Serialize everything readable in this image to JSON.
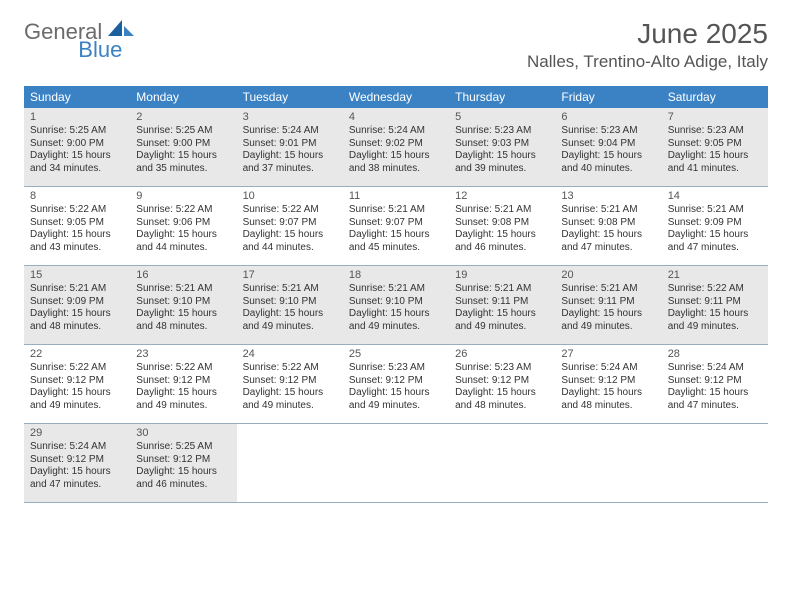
{
  "logo": {
    "word1": "General",
    "word2": "Blue"
  },
  "title": "June 2025",
  "location": "Nalles, Trentino-Alto Adige, Italy",
  "colors": {
    "header_bg": "#3b82c4",
    "header_text": "#ffffff",
    "shaded_bg": "#e8e8e8",
    "rule": "#9aaebf",
    "body_text": "#333333",
    "muted_text": "#555555"
  },
  "day_headers": [
    "Sunday",
    "Monday",
    "Tuesday",
    "Wednesday",
    "Thursday",
    "Friday",
    "Saturday"
  ],
  "weeks": [
    {
      "shaded": true,
      "days": [
        {
          "n": "1",
          "sr": "5:25 AM",
          "ss": "9:00 PM",
          "dl": "15 hours and 34 minutes."
        },
        {
          "n": "2",
          "sr": "5:25 AM",
          "ss": "9:00 PM",
          "dl": "15 hours and 35 minutes."
        },
        {
          "n": "3",
          "sr": "5:24 AM",
          "ss": "9:01 PM",
          "dl": "15 hours and 37 minutes."
        },
        {
          "n": "4",
          "sr": "5:24 AM",
          "ss": "9:02 PM",
          "dl": "15 hours and 38 minutes."
        },
        {
          "n": "5",
          "sr": "5:23 AM",
          "ss": "9:03 PM",
          "dl": "15 hours and 39 minutes."
        },
        {
          "n": "6",
          "sr": "5:23 AM",
          "ss": "9:04 PM",
          "dl": "15 hours and 40 minutes."
        },
        {
          "n": "7",
          "sr": "5:23 AM",
          "ss": "9:05 PM",
          "dl": "15 hours and 41 minutes."
        }
      ]
    },
    {
      "shaded": false,
      "days": [
        {
          "n": "8",
          "sr": "5:22 AM",
          "ss": "9:05 PM",
          "dl": "15 hours and 43 minutes."
        },
        {
          "n": "9",
          "sr": "5:22 AM",
          "ss": "9:06 PM",
          "dl": "15 hours and 44 minutes."
        },
        {
          "n": "10",
          "sr": "5:22 AM",
          "ss": "9:07 PM",
          "dl": "15 hours and 44 minutes."
        },
        {
          "n": "11",
          "sr": "5:21 AM",
          "ss": "9:07 PM",
          "dl": "15 hours and 45 minutes."
        },
        {
          "n": "12",
          "sr": "5:21 AM",
          "ss": "9:08 PM",
          "dl": "15 hours and 46 minutes."
        },
        {
          "n": "13",
          "sr": "5:21 AM",
          "ss": "9:08 PM",
          "dl": "15 hours and 47 minutes."
        },
        {
          "n": "14",
          "sr": "5:21 AM",
          "ss": "9:09 PM",
          "dl": "15 hours and 47 minutes."
        }
      ]
    },
    {
      "shaded": true,
      "days": [
        {
          "n": "15",
          "sr": "5:21 AM",
          "ss": "9:09 PM",
          "dl": "15 hours and 48 minutes."
        },
        {
          "n": "16",
          "sr": "5:21 AM",
          "ss": "9:10 PM",
          "dl": "15 hours and 48 minutes."
        },
        {
          "n": "17",
          "sr": "5:21 AM",
          "ss": "9:10 PM",
          "dl": "15 hours and 49 minutes."
        },
        {
          "n": "18",
          "sr": "5:21 AM",
          "ss": "9:10 PM",
          "dl": "15 hours and 49 minutes."
        },
        {
          "n": "19",
          "sr": "5:21 AM",
          "ss": "9:11 PM",
          "dl": "15 hours and 49 minutes."
        },
        {
          "n": "20",
          "sr": "5:21 AM",
          "ss": "9:11 PM",
          "dl": "15 hours and 49 minutes."
        },
        {
          "n": "21",
          "sr": "5:22 AM",
          "ss": "9:11 PM",
          "dl": "15 hours and 49 minutes."
        }
      ]
    },
    {
      "shaded": false,
      "days": [
        {
          "n": "22",
          "sr": "5:22 AM",
          "ss": "9:12 PM",
          "dl": "15 hours and 49 minutes."
        },
        {
          "n": "23",
          "sr": "5:22 AM",
          "ss": "9:12 PM",
          "dl": "15 hours and 49 minutes."
        },
        {
          "n": "24",
          "sr": "5:22 AM",
          "ss": "9:12 PM",
          "dl": "15 hours and 49 minutes."
        },
        {
          "n": "25",
          "sr": "5:23 AM",
          "ss": "9:12 PM",
          "dl": "15 hours and 49 minutes."
        },
        {
          "n": "26",
          "sr": "5:23 AM",
          "ss": "9:12 PM",
          "dl": "15 hours and 48 minutes."
        },
        {
          "n": "27",
          "sr": "5:24 AM",
          "ss": "9:12 PM",
          "dl": "15 hours and 48 minutes."
        },
        {
          "n": "28",
          "sr": "5:24 AM",
          "ss": "9:12 PM",
          "dl": "15 hours and 47 minutes."
        }
      ]
    },
    {
      "shaded": true,
      "days": [
        {
          "n": "29",
          "sr": "5:24 AM",
          "ss": "9:12 PM",
          "dl": "15 hours and 47 minutes."
        },
        {
          "n": "30",
          "sr": "5:25 AM",
          "ss": "9:12 PM",
          "dl": "15 hours and 46 minutes."
        },
        {
          "n": "",
          "sr": "",
          "ss": "",
          "dl": ""
        },
        {
          "n": "",
          "sr": "",
          "ss": "",
          "dl": ""
        },
        {
          "n": "",
          "sr": "",
          "ss": "",
          "dl": ""
        },
        {
          "n": "",
          "sr": "",
          "ss": "",
          "dl": ""
        },
        {
          "n": "",
          "sr": "",
          "ss": "",
          "dl": ""
        }
      ]
    }
  ],
  "labels": {
    "sr": "Sunrise:",
    "ss": "Sunset:",
    "dl": "Daylight:"
  }
}
